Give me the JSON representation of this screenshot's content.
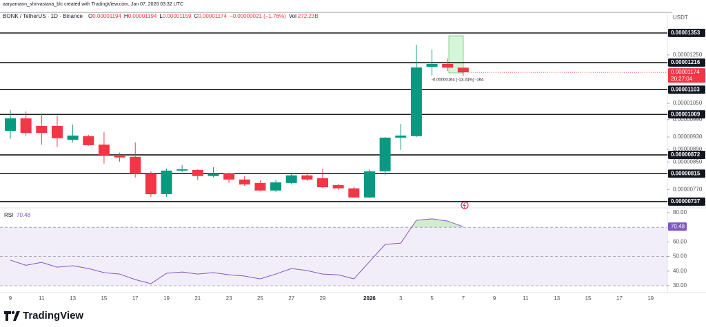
{
  "chart_data": {
    "type": "candlestick",
    "watermark": "aaryamann_shrivastava_blc created with TradingView.com, Jan 07, 2026 03:32 UTC",
    "symbol": "BONK / TetherUS · 1D · Binance",
    "ohlc_letters": [
      "O",
      "H",
      "L",
      "C"
    ],
    "change": "−0.00000021 (−1.76%)",
    "volume_label": "Vol",
    "volume": "272.23B",
    "currency": "USDT",
    "countdown": "20:27:04",
    "measure_label": "-0.00000164 (-13.24%) -164",
    "brand": "TradingView",
    "log_scale": true,
    "up_color": "#089981",
    "down_color": "#f23645",
    "categories": [
      "9",
      null,
      "11",
      null,
      "13",
      null,
      "15",
      null,
      "17",
      null,
      "19",
      null,
      "21",
      null,
      "23",
      null,
      "25",
      null,
      "27",
      null,
      "29",
      null,
      null,
      "2026",
      null,
      "3",
      null,
      "5",
      null,
      "7",
      null,
      "9",
      null,
      "11",
      null,
      "13",
      null,
      "15",
      null,
      "17",
      null,
      "19"
    ],
    "open": [
      9.51e-06,
      9.95e-06,
      9.68e-06,
      9.68e-06,
      9.21e-06,
      9.33e-06,
      9.05e-06,
      8.72e-06,
      8.66e-06,
      8.14e-06,
      7.57e-06,
      8.24e-06,
      8.26e-06,
      8.08e-06,
      8.16e-06,
      7.98e-06,
      7.88e-06,
      7.67e-06,
      7.88e-06,
      8.1e-06,
      8.02e-06,
      7.82e-06,
      7.73e-06,
      7.48e-06,
      8.22e-06,
      9.28e-06,
      9.33e-06,
      1.198e-05,
      1.21e-05,
      1.194e-05,
      null,
      null,
      null,
      null,
      null,
      null,
      null,
      null,
      null,
      null,
      null,
      null
    ],
    "high": [
      1.025e-05,
      1.02e-05,
      1.012e-05,
      1.005e-05,
      9.73e-06,
      9.37e-06,
      9.47e-06,
      8.79e-06,
      9.12e-06,
      8.22e-06,
      8.3e-06,
      8.41e-06,
      8.28e-06,
      8.34e-06,
      8.18e-06,
      8.08e-06,
      7.96e-06,
      7.96e-06,
      8.14e-06,
      8.18e-06,
      8.3e-06,
      7.86e-06,
      7.78e-06,
      8.28e-06,
      9.3e-06,
      9.75e-06,
      1.297e-05,
      1.275e-05,
      1.234e-05,
      1.194e-05,
      null,
      null,
      null,
      null,
      null,
      null,
      null,
      null,
      null,
      null,
      null,
      null
    ],
    "low": [
      9.24e-06,
      9.35e-06,
      9.05e-06,
      8.97e-06,
      9.12e-06,
      9.01e-06,
      8.45e-06,
      8.51e-06,
      8.04e-06,
      7.5e-06,
      7.5e-06,
      8.2e-06,
      7.96e-06,
      8.04e-06,
      7.88e-06,
      7.8e-06,
      7.65e-06,
      7.63e-06,
      7.84e-06,
      7.94e-06,
      7.74e-06,
      7.69e-06,
      7.46e-06,
      7.46e-06,
      8.1e-06,
      8.88e-06,
      9.3e-06,
      1.16e-05,
      1.18e-05,
      1.159e-05,
      null,
      null,
      null,
      null,
      null,
      null,
      null,
      null,
      null,
      null,
      null,
      null
    ],
    "close": [
      9.95e-06,
      9.44e-06,
      9.44e-06,
      9.26e-06,
      9.35e-06,
      9.03e-06,
      8.72e-06,
      8.64e-06,
      8.14e-06,
      7.57e-06,
      8.24e-06,
      8.28e-06,
      8.08e-06,
      8.14e-06,
      7.98e-06,
      7.84e-06,
      7.67e-06,
      7.9e-06,
      8.1e-06,
      7.98e-06,
      7.76e-06,
      7.73e-06,
      7.48e-06,
      8.22e-06,
      9.28e-06,
      9.35e-06,
      1.195e-05,
      1.21e-05,
      1.194e-05,
      1.174e-05,
      null,
      null,
      null,
      null,
      null,
      null,
      null,
      null,
      null,
      null,
      null,
      null
    ],
    "ylim": [
      7.24e-06,
      1.468e-05
    ],
    "yticks": [
      {
        "value": 1.25e-05,
        "label": "0.00001250"
      },
      {
        "value": 1.05e-05,
        "label": "0.00001050"
      },
      {
        "value": 9.9e-06,
        "label": "0.00000990"
      },
      {
        "value": 9.3e-06,
        "label": "0.00000930"
      },
      {
        "value": 8.9e-06,
        "label": "0.00000890"
      },
      {
        "value": 8.5e-06,
        "label": "0.00000850"
      },
      {
        "value": 7.7e-06,
        "label": "0.00000770"
      }
    ],
    "levels": [
      1.353e-05,
      1.216e-05,
      1.103e-05,
      1.009e-05,
      8.72e-06,
      8.15e-06,
      7.37e-06
    ],
    "rsi": {
      "name": "RSI",
      "color": "#7e57c2",
      "values": [
        47.5,
        44,
        46,
        42.7,
        43.7,
        41.8,
        39,
        38,
        34.2,
        31.4,
        38.5,
        39.4,
        38,
        39,
        37.5,
        36.6,
        34.7,
        38,
        41.8,
        40.4,
        38,
        37.5,
        34.7,
        46.5,
        58.3,
        59.2,
        74.8,
        75.8,
        74.3,
        70.48,
        null,
        null,
        null,
        null,
        null,
        null,
        null,
        null,
        null,
        null,
        null,
        null
      ],
      "ylim": [
        25.3,
        83.3
      ],
      "yticks": [
        {
          "value": 80,
          "label": "80.00"
        },
        {
          "value": 60,
          "label": "60.00"
        },
        {
          "value": 50,
          "label": "50.00"
        },
        {
          "value": 40,
          "label": "40.00"
        },
        {
          "value": 30,
          "label": "30.00"
        }
      ],
      "band": [
        30,
        70
      ],
      "dashed_lines": [
        70,
        50,
        30
      ]
    }
  }
}
